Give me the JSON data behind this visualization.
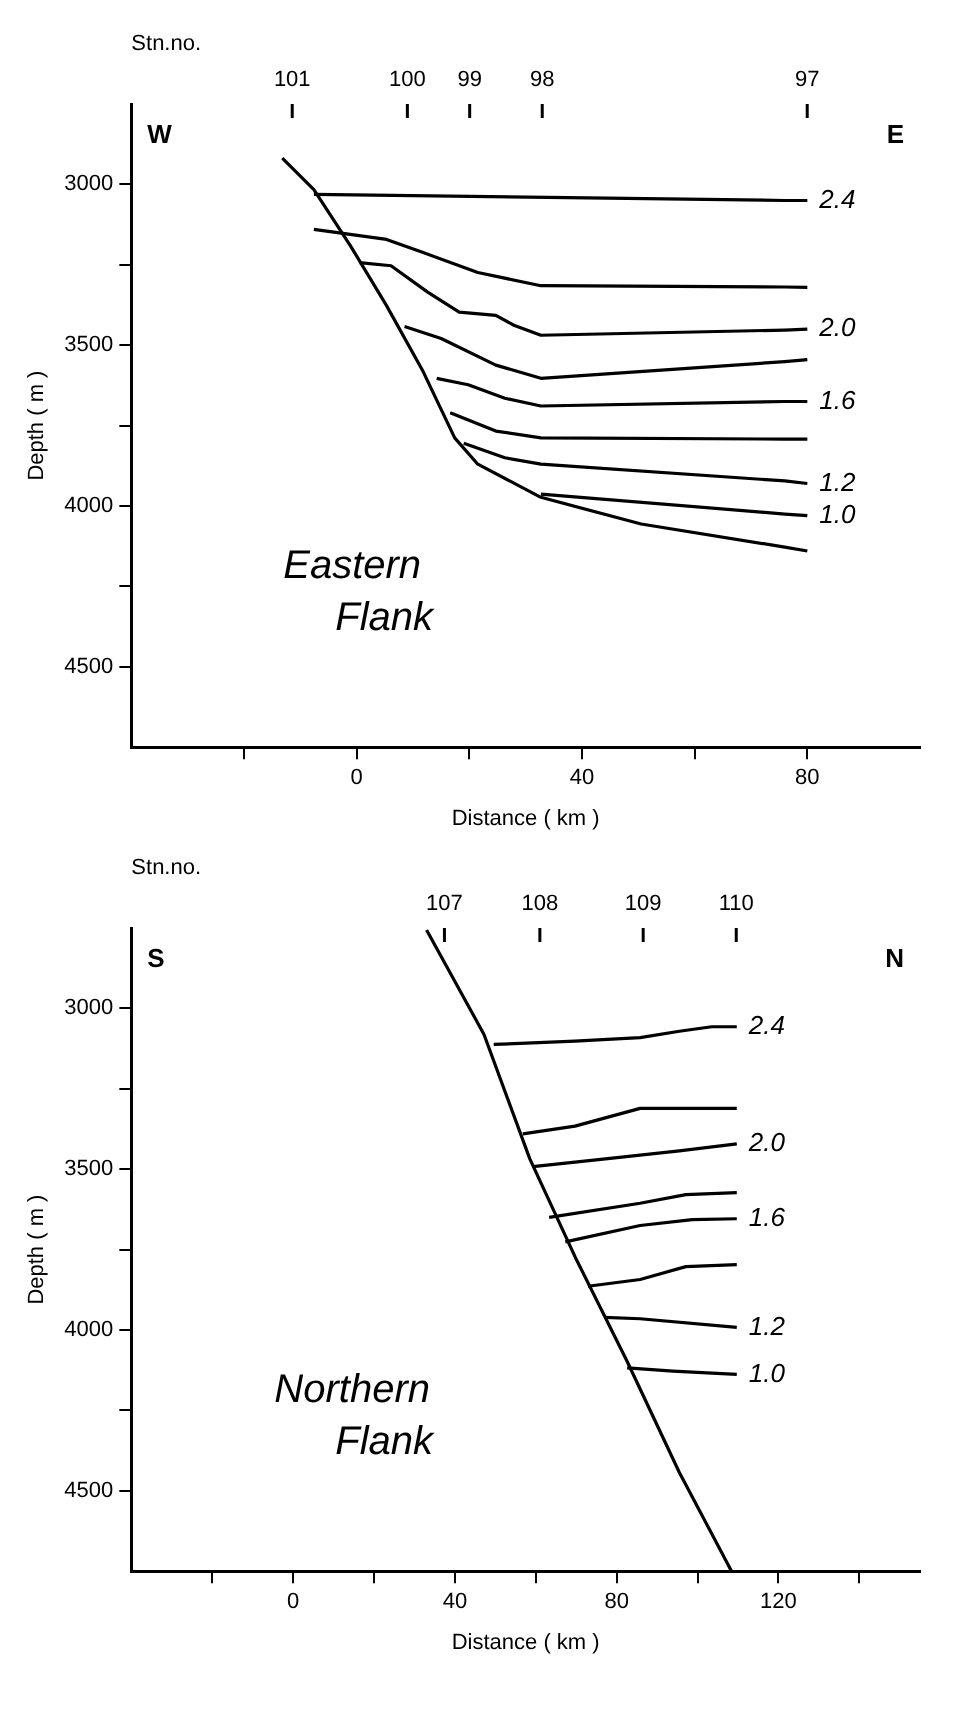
{
  "chart_data": [
    {
      "type": "line",
      "xlabel": "Distance ( km )",
      "ylabel": "Depth ( m )",
      "xlim": [
        -40,
        100
      ],
      "ylim": [
        4750,
        2750
      ],
      "xticks": [
        {
          "value": -20,
          "label": null
        },
        0,
        {
          "value": 20,
          "label": null
        },
        40,
        {
          "value": 60,
          "label": null
        },
        80
      ],
      "yticks": [
        3000,
        {
          "value": 3250,
          "label": null
        },
        3500,
        {
          "value": 3750,
          "label": null
        },
        4000,
        {
          "value": 4250,
          "label": null
        },
        4500
      ],
      "grid": false,
      "legend": false,
      "marker": "none",
      "line_style": "solid",
      "annotations": [
        "W",
        "E",
        "Eastern Flank",
        "Stn.no.",
        "101",
        "100",
        "99",
        "98",
        "97"
      ],
      "series": [
        {
          "color": "#000000",
          "x": [
            -13.2,
            -7.6,
            -1.1,
            5.3,
            11.8,
            17.4,
            21.5,
            32.7,
            50.5,
            76,
            80
          ],
          "values": [
            2918,
            3016,
            3191,
            3377,
            3582,
            3788,
            3870,
            3973,
            4056,
            4128,
            4140
          ]
        },
        {
          "name": "2.4",
          "color": "#000000",
          "x": [
            -7.6,
            76,
            80
          ],
          "values": [
            3031,
            3050,
            3050
          ]
        },
        {
          "color": "#000000",
          "x": [
            -7.6,
            5.3,
            11.8,
            21.5,
            32.7,
            76,
            80
          ],
          "values": [
            3140,
            3171,
            3212,
            3274,
            3315,
            3319,
            3320
          ]
        },
        {
          "name": "2.0",
          "color": "#000000",
          "x": [
            0.5,
            6.1,
            12.6,
            18.2,
            24.7,
            27.9,
            32.7,
            76,
            80
          ],
          "values": [
            3243,
            3253,
            3335,
            3397,
            3407,
            3438,
            3469,
            3453,
            3450
          ]
        },
        {
          "color": "#000000",
          "x": [
            8.5,
            15,
            24.7,
            32.7,
            76,
            80
          ],
          "values": [
            3442,
            3479,
            3562,
            3603,
            3551,
            3545
          ]
        },
        {
          "name": "1.6",
          "color": "#000000",
          "x": [
            14.2,
            19.8,
            26.3,
            32.7,
            76,
            80
          ],
          "values": [
            3603,
            3623,
            3665,
            3689,
            3675,
            3675
          ]
        },
        {
          "color": "#000000",
          "x": [
            16.6,
            24.7,
            32.7,
            76,
            80
          ],
          "values": [
            3710,
            3767,
            3788,
            3792,
            3792
          ]
        },
        {
          "name": "1.2",
          "color": "#000000",
          "x": [
            19,
            26.3,
            32.7,
            76,
            80
          ],
          "values": [
            3805,
            3850,
            3870,
            3922,
            3930
          ]
        },
        {
          "name": "1.0",
          "color": "#000000",
          "x": [
            32.7,
            76,
            80
          ],
          "values": [
            3963,
            4025,
            4030
          ]
        }
      ]
    },
    {
      "type": "line",
      "xlabel": "Distance ( km )",
      "ylabel": "Depth ( m )",
      "xlim": [
        -40,
        155
      ],
      "ylim": [
        4750,
        2750
      ],
      "xticks": [
        {
          "value": -20,
          "label": null
        },
        0,
        {
          "value": 20,
          "label": null
        },
        40,
        {
          "value": 60,
          "label": null
        },
        80,
        {
          "value": 100,
          "label": null
        },
        120,
        {
          "value": 140,
          "label": null
        }
      ],
      "yticks": [
        3000,
        {
          "value": 3250,
          "label": null
        },
        3500,
        {
          "value": 3750,
          "label": null
        },
        4000,
        {
          "value": 4250,
          "label": null
        },
        4500
      ],
      "grid": false,
      "legend": false,
      "marker": "none",
      "line_style": "solid",
      "annotations": [
        "S",
        "N",
        "Northern Flank",
        "Stn.no.",
        "107",
        "108",
        "109",
        "110"
      ],
      "series": [
        {
          "color": "#000000",
          "x": [
            33,
            47.2,
            58.5,
            69.7,
            82.6,
            95.5,
            108.4
          ],
          "values": [
            2756,
            3081,
            3467,
            3772,
            4098,
            4443,
            4750
          ]
        },
        {
          "name": "2.4",
          "color": "#000000",
          "x": [
            49.6,
            69.7,
            85.8,
            95.5,
            103.5,
            109.7
          ],
          "values": [
            3112,
            3102,
            3091,
            3071,
            3057,
            3057
          ]
        },
        {
          "color": "#000000",
          "x": [
            56.8,
            69.7,
            85.8,
            109.7
          ],
          "values": [
            3390,
            3366,
            3311,
            3311
          ]
        },
        {
          "name": "2.0",
          "color": "#000000",
          "x": [
            59.3,
            77.8,
            95.5,
            109.7
          ],
          "values": [
            3492,
            3467,
            3443,
            3421
          ]
        },
        {
          "color": "#000000",
          "x": [
            63.3,
            85.8,
            97.1,
            109.7
          ],
          "values": [
            3650,
            3606,
            3579,
            3573
          ]
        },
        {
          "name": "1.6",
          "color": "#000000",
          "x": [
            67.3,
            85.8,
            98.7,
            109.7
          ],
          "values": [
            3726,
            3675,
            3657,
            3654
          ]
        },
        {
          "color": "#000000",
          "x": [
            72.9,
            85.8,
            97.1,
            109.7
          ],
          "values": [
            3864,
            3843,
            3803,
            3797
          ]
        },
        {
          "name": "1.2",
          "color": "#000000",
          "x": [
            77,
            85.8,
            109.7
          ],
          "values": [
            3961,
            3965,
            3992
          ]
        },
        {
          "name": "1.0",
          "color": "#000000",
          "x": [
            82.6,
            93.9,
            109.7
          ],
          "values": [
            4118,
            4128,
            4138
          ]
        }
      ]
    }
  ]
}
